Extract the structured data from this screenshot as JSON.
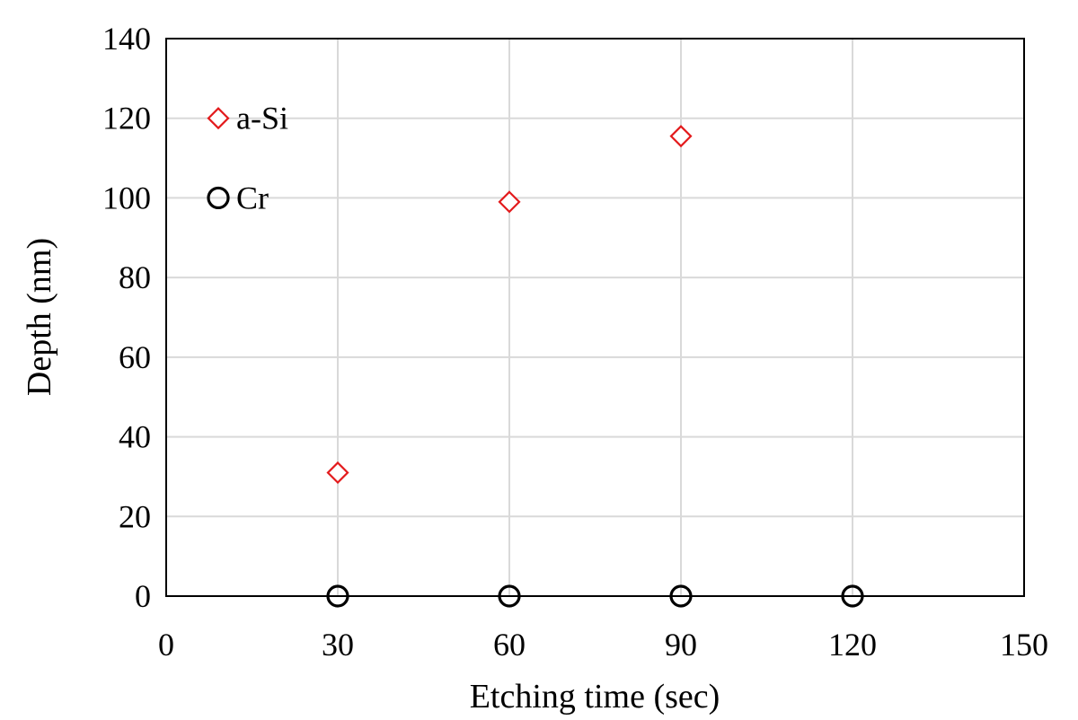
{
  "chart_data": {
    "type": "scatter",
    "title": "",
    "xlabel": "Etching time (sec)",
    "ylabel": "Depth (nm)",
    "xlim": [
      0,
      150
    ],
    "ylim": [
      0,
      140
    ],
    "x_ticks": [
      0,
      30,
      60,
      90,
      120,
      150
    ],
    "y_ticks": [
      0,
      20,
      40,
      60,
      80,
      100,
      120,
      140
    ],
    "grid": true,
    "legend_position": "top-left",
    "series": [
      {
        "name": "a-Si",
        "marker": "diamond",
        "color": "#e31a1c",
        "x": [
          30,
          60,
          90
        ],
        "y": [
          31,
          99,
          115.5
        ]
      },
      {
        "name": "Cr",
        "marker": "circle",
        "color": "#000000",
        "x": [
          30,
          60,
          90,
          120
        ],
        "y": [
          0,
          0,
          0,
          0
        ]
      }
    ]
  }
}
